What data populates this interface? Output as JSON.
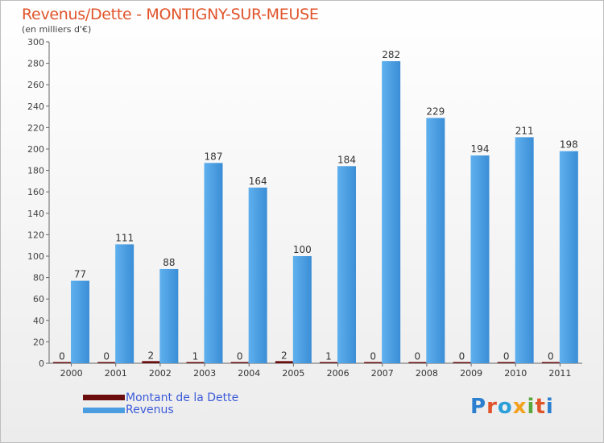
{
  "header": {
    "title": "Revenus/Dette - MONTIGNY-SUR-MEUSE",
    "subtitle": "(en milliers d'€)"
  },
  "colors": {
    "revenus": "#4a9de0",
    "dette": "#6b0d0d",
    "title": "#e0542a",
    "legend_text": "#3d5bd9"
  },
  "chart_data": {
    "type": "bar",
    "categories": [
      "2000",
      "2001",
      "2002",
      "2003",
      "2004",
      "2005",
      "2006",
      "2007",
      "2008",
      "2009",
      "2010",
      "2011"
    ],
    "series": [
      {
        "name": "Montant de la Dette",
        "values": [
          0,
          0,
          2,
          1,
          0,
          2,
          1,
          0,
          0,
          0,
          0,
          0
        ]
      },
      {
        "name": "Revenus",
        "values": [
          77,
          111,
          88,
          187,
          164,
          100,
          184,
          282,
          229,
          194,
          211,
          198
        ]
      }
    ],
    "ylim": [
      0,
      300
    ],
    "yticks": [
      0,
      20,
      40,
      60,
      80,
      100,
      120,
      140,
      160,
      180,
      200,
      220,
      240,
      260,
      280,
      300
    ],
    "grid": false,
    "legend_position": "bottom-left"
  },
  "legend": {
    "items": [
      {
        "label": "Montant de la Dette",
        "color": "#6b0d0d"
      },
      {
        "label": "Revenus",
        "color": "#4a9de0"
      }
    ]
  },
  "logo": {
    "letters": [
      {
        "char": "P",
        "color": "#2c7fcf"
      },
      {
        "char": "r",
        "color": "#e0542a"
      },
      {
        "char": "o",
        "color": "#2c9ed8"
      },
      {
        "char": "x",
        "color": "#f2a21f"
      },
      {
        "char": "i",
        "color": "#5aa83b"
      },
      {
        "char": "t",
        "color": "#e0542a"
      },
      {
        "char": "i",
        "color": "#2c7fcf"
      }
    ]
  }
}
